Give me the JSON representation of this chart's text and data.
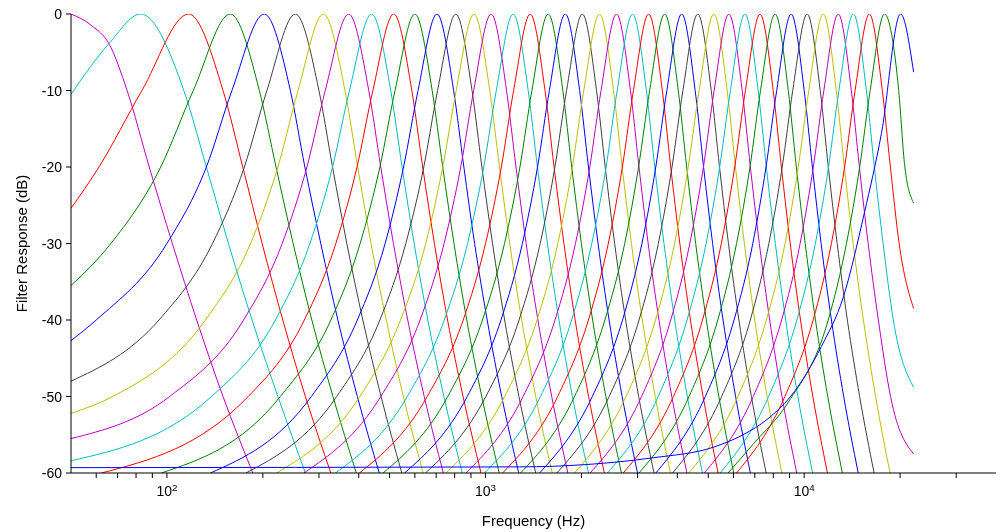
{
  "chart_data": {
    "type": "line",
    "xlabel": "Frequency (Hz)",
    "ylabel": "Filter Response (dB)",
    "log": "x",
    "xlim": [
      50,
      40000
    ],
    "ylim": [
      -60,
      0
    ],
    "xticks": [
      {
        "value": 60,
        "label": null
      },
      {
        "value": 70,
        "label": null
      },
      {
        "value": 80,
        "label": null
      },
      {
        "value": 90,
        "label": null
      },
      {
        "value": 100,
        "label": "10$^{2}$"
      },
      {
        "value": 200,
        "label": null
      },
      {
        "value": 300,
        "label": null
      },
      {
        "value": 400,
        "label": null
      },
      {
        "value": 500,
        "label": null
      },
      {
        "value": 600,
        "label": null
      },
      {
        "value": 700,
        "label": null
      },
      {
        "value": 800,
        "label": null
      },
      {
        "value": 900,
        "label": null
      },
      {
        "value": 1000,
        "label": "10$^{3}$"
      },
      {
        "value": 2000,
        "label": null
      },
      {
        "value": 3000,
        "label": null
      },
      {
        "value": 4000,
        "label": null
      },
      {
        "value": 5000,
        "label": null
      },
      {
        "value": 6000,
        "label": null
      },
      {
        "value": 7000,
        "label": null
      },
      {
        "value": 8000,
        "label": null
      },
      {
        "value": 9000,
        "label": null
      },
      {
        "value": 10000,
        "label": "10$^{4}$"
      },
      {
        "value": 20000,
        "label": null
      },
      {
        "value": 30000,
        "label": null
      }
    ],
    "yticks": [
      -60,
      -50,
      -40,
      -30,
      -20,
      -10,
      0
    ],
    "series": [
      {
        "color": "#bf00bf",
        "x": [
          50,
          58,
          66,
          75,
          88,
          104,
          124,
          150,
          186
        ],
        "values": [
          0,
          -1.5,
          -4,
          -10,
          -20,
          -30,
          -40,
          -50,
          -60
        ]
      },
      {
        "color": "#00bfbf",
        "x": [
          50,
          65.7,
          82.8,
          113,
          133,
          156,
          185,
          223,
          272
        ],
        "values": [
          -10.5,
          -3.9,
          0,
          -10,
          -20,
          -30,
          -40,
          -50,
          -60
        ]
      },
      {
        "color": "#ff0000",
        "x": [
          50,
          61.2,
          83.5,
          117,
          150,
          173,
          199,
          231,
          272,
          327
        ],
        "values": [
          -25.4,
          -20,
          -10,
          0,
          -10,
          -20,
          -30,
          -40,
          -50,
          -60
        ]
      },
      {
        "color": "#008000",
        "x": [
          50,
          66.7,
          95.6,
          121,
          158,
          195,
          220,
          249,
          285,
          332,
          393
        ],
        "values": [
          -35.5,
          -30,
          -20,
          -10,
          0,
          -10,
          -20,
          -30,
          -40,
          -50,
          -60
        ]
      },
      {
        "color": "#0000ff",
        "x": [
          50,
          60,
          100,
          133,
          160,
          202,
          244,
          271,
          304,
          344,
          396,
          464
        ],
        "values": [
          -42.7,
          -40,
          -30,
          -20,
          -10,
          0,
          -10,
          -20,
          -30,
          -40,
          -50,
          -60
        ]
      },
      {
        "color": "#404040",
        "x": [
          50,
          94.4,
          139,
          175,
          206,
          253,
          300,
          331,
          367,
          412,
          470,
          546
        ],
        "values": [
          -48,
          -40,
          -30,
          -20,
          -10,
          0,
          -10,
          -20,
          -30,
          -40,
          -50,
          -60
        ]
      },
      {
        "color": "#bfbf00",
        "x": [
          50,
          67.6,
          132,
          183,
          223,
          258,
          310,
          362,
          397,
          437,
          488,
          552,
          637
        ],
        "values": [
          -52.2,
          -50,
          -40,
          -30,
          -20,
          -10,
          0,
          -10,
          -20,
          -30,
          -40,
          -50,
          -60
        ]
      },
      {
        "color": "#bf00bf",
        "x": [
          50,
          102,
          174,
          230,
          275,
          314,
          372,
          430,
          469,
          514,
          570,
          642,
          737
        ],
        "values": [
          -55.5,
          -50,
          -40,
          -30,
          -20,
          -10,
          0,
          -10,
          -20,
          -30,
          -40,
          -50,
          -60
        ]
      },
      {
        "color": "#00bfbf",
        "x": [
          50,
          138,
          219,
          281,
          331,
          374,
          439,
          504,
          547,
          597,
          659,
          740,
          845
        ],
        "values": [
          -58.4,
          -50,
          -40,
          -30,
          -20,
          -10,
          0,
          -10,
          -20,
          -30,
          -40,
          -50,
          -60
        ]
      },
      {
        "color": "#ff0000",
        "x": [
          62.3,
          180,
          270,
          339,
          395,
          443,
          515,
          587,
          635,
          691,
          760,
          850,
          968
        ],
        "values": [
          -60,
          -50,
          -40,
          -30,
          -20,
          -10,
          0,
          -10,
          -20,
          -30,
          -40,
          -50,
          -60
        ]
      },
      {
        "color": "#008000",
        "x": [
          96,
          227,
          327,
          404,
          466,
          520,
          600,
          680,
          734,
          796,
          873,
          973,
          1104
        ],
        "values": [
          -60,
          -50,
          -40,
          -30,
          -20,
          -10,
          0,
          -10,
          -20,
          -30,
          -40,
          -50,
          -60
        ]
      },
      {
        "color": "#0000ff",
        "x": [
          137,
          284,
          396,
          484,
          553,
          614,
          704,
          794,
          855,
          924,
          1012,
          1124,
          1271
        ],
        "values": [
          -60,
          -50,
          -40,
          -30,
          -20,
          -10,
          0,
          -10,
          -20,
          -30,
          -40,
          -50,
          -60
        ]
      },
      {
        "color": "#404040",
        "x": [
          177,
          341,
          466,
          562,
          640,
          707,
          807,
          907,
          974,
          1052,
          1148,
          1273,
          1437
        ],
        "values": [
          -60,
          -50,
          -40,
          -30,
          -20,
          -10,
          0,
          -10,
          -20,
          -30,
          -40,
          -50,
          -60
        ]
      },
      {
        "color": "#bfbf00",
        "x": [
          221,
          403,
          541,
          649,
          734,
          809,
          920,
          1031,
          1106,
          1191,
          1299,
          1437,
          1619
        ],
        "values": [
          -60,
          -50,
          -40,
          -30,
          -20,
          -10,
          0,
          -10,
          -20,
          -30,
          -40,
          -50,
          -60
        ]
      },
      {
        "color": "#bf00bf",
        "x": [
          269,
          469,
          623,
          741,
          836,
          918,
          1041,
          1164,
          1246,
          1341,
          1460,
          1613,
          1813
        ],
        "values": [
          -60,
          -50,
          -40,
          -30,
          -20,
          -10,
          0,
          -10,
          -20,
          -30,
          -40,
          -50,
          -60
        ]
      },
      {
        "color": "#00bfbf",
        "x": [
          338,
          568,
          742,
          878,
          987,
          1081,
          1221,
          1361,
          1455,
          1564,
          1700,
          1874,
          2104
        ],
        "values": [
          -60,
          -50,
          -40,
          -30,
          -20,
          -10,
          0,
          -10,
          -20,
          -30,
          -40,
          -50,
          -60
        ]
      },
      {
        "color": "#ff0000",
        "x": [
          402,
          656,
          851,
          1000,
          1121,
          1225,
          1381,
          1537,
          1641,
          1762,
          1911,
          2106,
          2360
        ],
        "values": [
          -60,
          -50,
          -40,
          -30,
          -20,
          -10,
          0,
          -10,
          -20,
          -30,
          -40,
          -50,
          -60
        ]
      },
      {
        "color": "#008000",
        "x": [
          477,
          761,
          978,
          1147,
          1282,
          1398,
          1573,
          1748,
          1864,
          1999,
          2168,
          2385,
          2669
        ],
        "values": [
          -60,
          -50,
          -40,
          -30,
          -20,
          -10,
          0,
          -10,
          -20,
          -30,
          -40,
          -50,
          -60
        ]
      },
      {
        "color": "#0000ff",
        "x": [
          557,
          876,
          1118,
          1305,
          1456,
          1586,
          1780,
          1974,
          2104,
          2255,
          2442,
          2684,
          2999
        ],
        "values": [
          -60,
          -50,
          -40,
          -30,
          -20,
          -10,
          0,
          -10,
          -20,
          -30,
          -40,
          -50,
          -60
        ]
      },
      {
        "color": "#404040",
        "x": [
          648,
          1002,
          1274,
          1484,
          1651,
          1796,
          2013,
          2230,
          2375,
          2542,
          2752,
          3024,
          3378
        ],
        "values": [
          -60,
          -50,
          -40,
          -30,
          -20,
          -10,
          0,
          -10,
          -20,
          -30,
          -40,
          -50,
          -60
        ]
      },
      {
        "color": "#bfbf00",
        "x": [
          752,
          1148,
          1451,
          1686,
          1873,
          2034,
          2278,
          2522,
          2684,
          2870,
          3105,
          3408,
          3804
        ],
        "values": [
          -60,
          -50,
          -40,
          -30,
          -20,
          -10,
          0,
          -10,
          -20,
          -30,
          -40,
          -50,
          -60
        ]
      },
      {
        "color": "#bf00bf",
        "x": [
          868,
          1312,
          1652,
          1915,
          2124,
          2304,
          2577,
          2850,
          3031,
          3239,
          3502,
          3842,
          4286
        ],
        "values": [
          -60,
          -50,
          -40,
          -30,
          -20,
          -10,
          0,
          -10,
          -20,
          -30,
          -40,
          -50,
          -60
        ]
      },
      {
        "color": "#00bfbf",
        "x": [
          992,
          1487,
          1863,
          2155,
          2390,
          2589,
          2893,
          3197,
          3396,
          3631,
          3923,
          4299,
          4794
        ],
        "values": [
          -60,
          -50,
          -40,
          -30,
          -20,
          -10,
          0,
          -10,
          -20,
          -30,
          -40,
          -50,
          -60
        ]
      },
      {
        "color": "#ff0000",
        "x": [
          1131,
          1684,
          2103,
          2428,
          2688,
          2912,
          3250,
          3588,
          3812,
          4072,
          4397,
          4817,
          5369
        ],
        "values": [
          -60,
          -50,
          -40,
          -30,
          -20,
          -10,
          0,
          -10,
          -20,
          -30,
          -40,
          -50,
          -60
        ]
      },
      {
        "color": "#008000",
        "x": [
          1288,
          1902,
          2369,
          2734,
          3022,
          3274,
          3650,
          4026,
          4278,
          4566,
          4931,
          5398,
          6012
        ],
        "values": [
          -60,
          -50,
          -40,
          -30,
          -20,
          -10,
          0,
          -10,
          -20,
          -30,
          -40,
          -50,
          -60
        ]
      },
      {
        "color": "#0000ff",
        "x": [
          1478,
          2163,
          2691,
          3096,
          3422,
          3707,
          4128,
          4549,
          4834,
          5160,
          5565,
          6093,
          6778
        ],
        "values": [
          -60,
          -50,
          -40,
          -30,
          -20,
          -10,
          0,
          -10,
          -20,
          -30,
          -40,
          -50,
          -60
        ]
      },
      {
        "color": "#404040",
        "x": [
          1674,
          2443,
          3032,
          3486,
          3848,
          4163,
          4636,
          5109,
          5424,
          5786,
          6240,
          6829,
          7598
        ],
        "values": [
          -60,
          -50,
          -40,
          -30,
          -20,
          -10,
          0,
          -10,
          -20,
          -30,
          -40,
          -50,
          -60
        ]
      },
      {
        "color": "#bfbf00",
        "x": [
          1900,
          2759,
          3415,
          3920,
          4326,
          4680,
          5206,
          5732,
          6086,
          6492,
          6997,
          7653,
          8512
        ],
        "values": [
          -60,
          -50,
          -40,
          -30,
          -20,
          -10,
          0,
          -10,
          -20,
          -30,
          -40,
          -50,
          -60
        ]
      },
      {
        "color": "#bf00bf",
        "x": [
          2130,
          3088,
          3813,
          4376,
          4829,
          5218,
          5804,
          6390,
          6779,
          7232,
          7795,
          8520,
          9478
        ],
        "values": [
          -60,
          -50,
          -40,
          -30,
          -20,
          -10,
          0,
          -10,
          -20,
          -30,
          -40,
          -50,
          -60
        ]
      },
      {
        "color": "#00bfbf",
        "x": [
          2412,
          3482,
          4290,
          4923,
          5431,
          5868,
          6520,
          7172,
          7609,
          8117,
          8750,
          9558,
          10628
        ],
        "values": [
          -60,
          -50,
          -40,
          -30,
          -20,
          -10,
          0,
          -10,
          -20,
          -30,
          -40,
          -50,
          -60
        ]
      },
      {
        "color": "#ff0000",
        "x": [
          2704,
          3888,
          4797,
          5495,
          6054,
          6541,
          7268,
          7995,
          8482,
          9041,
          9739,
          10648,
          11832
        ],
        "values": [
          -60,
          -50,
          -40,
          -30,
          -20,
          -10,
          0,
          -10,
          -20,
          -30,
          -40,
          -50,
          -60
        ]
      },
      {
        "color": "#008000",
        "x": [
          3031,
          4352,
          5357,
          6135,
          6760,
          7295,
          8105,
          8916,
          9450,
          10075,
          10853,
          11858,
          13179
        ],
        "values": [
          -60,
          -50,
          -40,
          -30,
          -20,
          -10,
          0,
          -10,
          -20,
          -30,
          -40,
          -50,
          -60
        ]
      },
      {
        "color": "#0000ff",
        "x": [
          3422,
          4896,
          6025,
          6899,
          7590,
          8200,
          9101,
          10002,
          10612,
          11303,
          12177,
          13306,
          14780
        ],
        "values": [
          -60,
          -50,
          -40,
          -30,
          -20,
          -10,
          0,
          -10,
          -20,
          -30,
          -40,
          -50,
          -60
        ]
      },
      {
        "color": "#404040",
        "x": [
          3863,
          5509,
          6776,
          7747,
          8534,
          9208,
          10220,
          11232,
          11906,
          12693,
          13664,
          14931,
          16577
        ],
        "values": [
          -60,
          -50,
          -40,
          -30,
          -20,
          -10,
          0,
          -10,
          -20,
          -30,
          -40,
          -50,
          -60
        ]
      },
      {
        "color": "#bfbf00",
        "x": [
          4349,
          6197,
          7609,
          8710,
          9582,
          10340,
          11476,
          12612,
          13370,
          14242,
          15343,
          16755,
          18603
        ],
        "values": [
          -60,
          -50,
          -40,
          -30,
          -20,
          -10,
          0,
          -10,
          -20,
          -30,
          -40,
          -50,
          -60
        ]
      },
      {
        "color": "#bf00bf",
        "x": [
          4862,
          6922,
          8496,
          9711,
          10684,
          11528,
          12795,
          14062,
          14906,
          15879,
          17094,
          18668,
          22050
        ],
        "values": [
          -60,
          -50,
          -40,
          -30,
          -20,
          -10,
          0,
          -10,
          -20,
          -30,
          -40,
          -50,
          -57.5
        ]
      },
      {
        "color": "#00bfbf",
        "x": [
          5450,
          7732,
          9487,
          10842,
          11926,
          12854,
          14266,
          15678,
          16606,
          17690,
          19045,
          22050
        ],
        "values": [
          -60,
          -50,
          -40,
          -30,
          -20,
          -10,
          0,
          -10,
          -20,
          -30,
          -40,
          -48.8
        ]
      },
      {
        "color": "#ff0000",
        "x": [
          6136,
          8699,
          10669,
          12175,
          13393,
          14450,
          16020,
          17590,
          18647,
          19865,
          22050
        ],
        "values": [
          -60,
          -50,
          -40,
          -30,
          -20,
          -10,
          0,
          -10,
          -20,
          -30,
          -38.5
        ]
      },
      {
        "color": "#008000",
        "x": [
          5770,
          6960,
          8900,
          11897,
          13577,
          14934,
          16113,
          17864,
          19800,
          20700,
          22050
        ],
        "values": [
          -60,
          -56.1,
          -50.8,
          -40,
          -30,
          -20,
          -10,
          0,
          -10,
          -20,
          -24.7
        ]
      },
      {
        "color": "#0000ff",
        "x": [
          50,
          1280,
          3370,
          5210,
          6430,
          7700,
          9300,
          11310,
          13270,
          15450,
          17480,
          20067,
          22050
        ],
        "values": [
          -59.3,
          -59.2,
          -58,
          -56.6,
          -55,
          -52.9,
          -49.4,
          -43.5,
          -37,
          -26,
          -15.6,
          0,
          -7.6
        ]
      }
    ]
  }
}
